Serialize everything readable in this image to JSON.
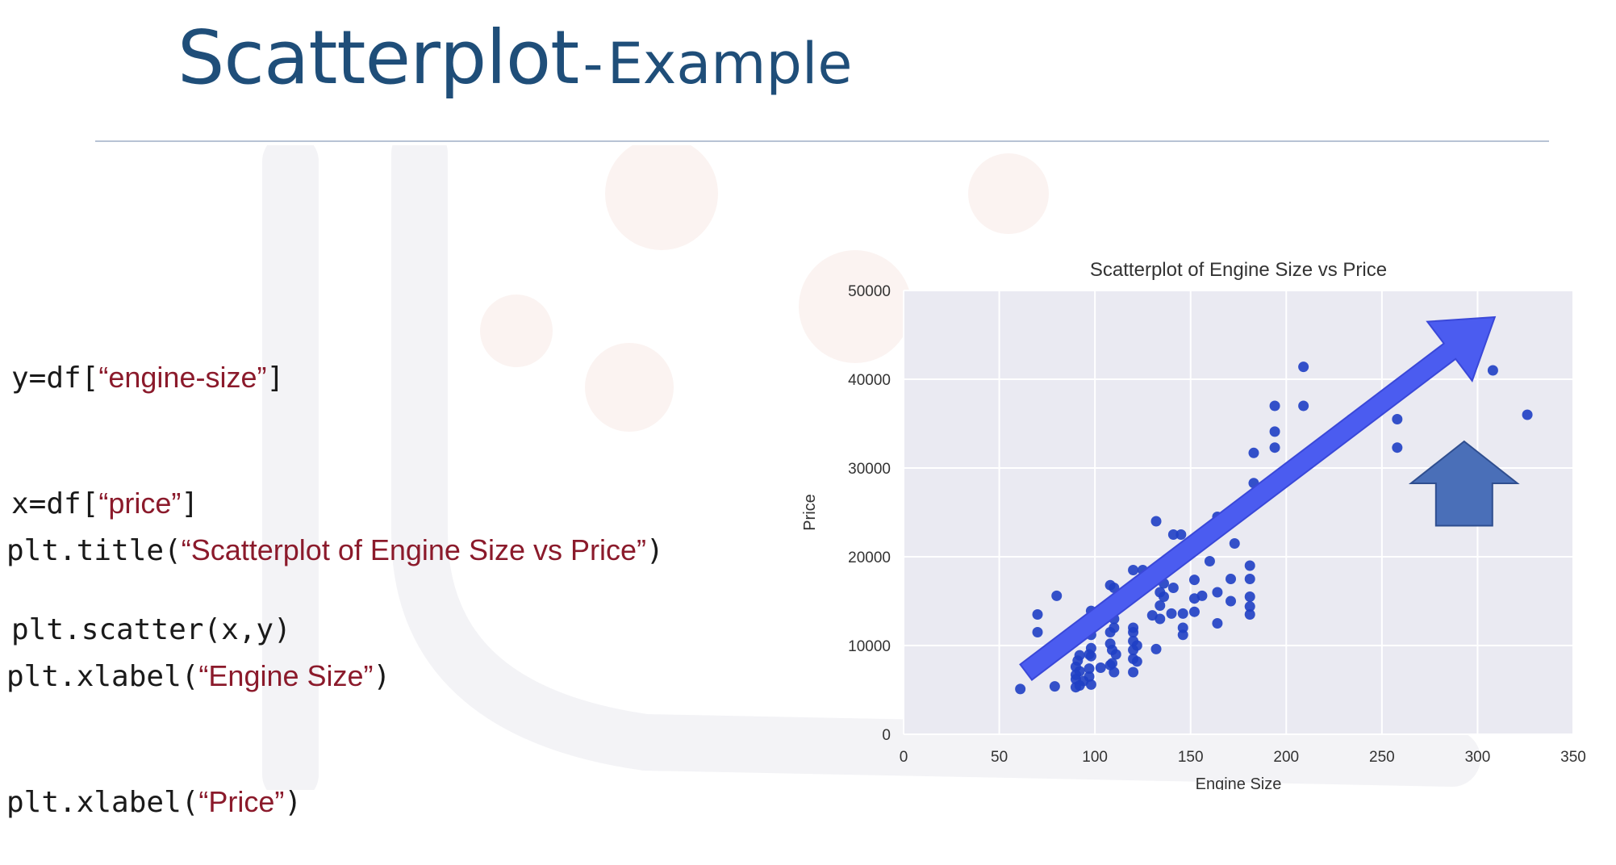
{
  "slide": {
    "title_main": "Scatterplot",
    "title_sep": "-",
    "title_sub": "Example"
  },
  "code_block_1": [
    {
      "pre": "y=df[",
      "str": "“engine-size”",
      "post": "]"
    },
    {
      "pre": "x=df[",
      "str": "“price”",
      "post": "]"
    },
    {
      "pre": "plt.scatter(x,y)",
      "str": "",
      "post": ""
    }
  ],
  "code_block_2": [
    {
      "pre": "plt.title(",
      "str": "“Scatterplot of Engine Size vs Price”",
      "post": ")"
    },
    {
      "pre": "plt.xlabel(",
      "str": "“Engine Size”",
      "post": ")"
    },
    {
      "pre": "plt.xlabel(",
      "str": "“Price”",
      "post": ")"
    }
  ],
  "colors": {
    "title": "#1f4e79",
    "code_string": "#8b1a2b",
    "plot_bg": "#eaeaf2",
    "point": "#1f3fc4",
    "trend_arrow": "#4b5cf0",
    "up_arrow": "#4a6fb8"
  },
  "annotations": {
    "trend_arrow": {
      "from": [
        64,
        7000
      ],
      "to": [
        309,
        47000
      ]
    },
    "up_arrow": {
      "x": 293,
      "y_base": 23500,
      "y_tip": 33000
    }
  },
  "chart_data": {
    "type": "scatter",
    "title": "Scatterplot of Engine Size vs Price",
    "xlabel": "Engine Size",
    "ylabel": "Price",
    "xlim": [
      0,
      350
    ],
    "ylim": [
      0,
      50000
    ],
    "xticks": [
      0,
      50,
      100,
      150,
      200,
      250,
      300,
      350
    ],
    "yticks": [
      0,
      10000,
      20000,
      30000,
      40000,
      50000
    ],
    "grid": true,
    "points": [
      [
        61,
        5100
      ],
      [
        70,
        13500
      ],
      [
        70,
        11500
      ],
      [
        79,
        5400
      ],
      [
        80,
        15600
      ],
      [
        90,
        5300
      ],
      [
        90,
        6200
      ],
      [
        90,
        6700
      ],
      [
        90,
        7600
      ],
      [
        91,
        8300
      ],
      [
        92,
        5500
      ],
      [
        92,
        7100
      ],
      [
        92,
        8900
      ],
      [
        94,
        6000
      ],
      [
        97,
        6500
      ],
      [
        97,
        7400
      ],
      [
        97,
        9000
      ],
      [
        98,
        5600
      ],
      [
        98,
        8800
      ],
      [
        98,
        9700
      ],
      [
        98,
        11200
      ],
      [
        98,
        13900
      ],
      [
        103,
        7500
      ],
      [
        108,
        7800
      ],
      [
        108,
        10200
      ],
      [
        108,
        11500
      ],
      [
        108,
        16800
      ],
      [
        109,
        8000
      ],
      [
        109,
        9500
      ],
      [
        110,
        7000
      ],
      [
        110,
        12000
      ],
      [
        110,
        13000
      ],
      [
        110,
        16500
      ],
      [
        111,
        9000
      ],
      [
        114,
        15000
      ],
      [
        120,
        7000
      ],
      [
        120,
        8500
      ],
      [
        120,
        9500
      ],
      [
        120,
        10500
      ],
      [
        120,
        11500
      ],
      [
        120,
        12000
      ],
      [
        120,
        16500
      ],
      [
        120,
        18500
      ],
      [
        122,
        10000
      ],
      [
        122,
        8200
      ],
      [
        130,
        13400
      ],
      [
        131,
        18000
      ],
      [
        132,
        9600
      ],
      [
        134,
        13000
      ],
      [
        134,
        14500
      ],
      [
        134,
        16000
      ],
      [
        136,
        15500
      ],
      [
        136,
        17000
      ],
      [
        140,
        13600
      ],
      [
        141,
        16500
      ],
      [
        141,
        22500
      ],
      [
        145,
        22500
      ],
      [
        146,
        11200
      ],
      [
        146,
        12000
      ],
      [
        146,
        13600
      ],
      [
        152,
        13800
      ],
      [
        152,
        15300
      ],
      [
        152,
        17400
      ],
      [
        156,
        15600
      ],
      [
        156,
        21500
      ],
      [
        164,
        12500
      ],
      [
        164,
        24500
      ],
      [
        164,
        16000
      ],
      [
        171,
        15000
      ],
      [
        171,
        17500
      ],
      [
        173,
        21500
      ],
      [
        181,
        13500
      ],
      [
        181,
        14400
      ],
      [
        181,
        15500
      ],
      [
        181,
        17500
      ],
      [
        181,
        19000
      ],
      [
        183,
        28300
      ],
      [
        183,
        31700
      ],
      [
        194,
        32300
      ],
      [
        194,
        34100
      ],
      [
        194,
        37000
      ],
      [
        203,
        30400
      ],
      [
        209,
        37000
      ],
      [
        209,
        41400
      ],
      [
        234,
        35500
      ],
      [
        258,
        32300
      ],
      [
        258,
        35500
      ],
      [
        308,
        41000
      ],
      [
        326,
        36000
      ],
      [
        132,
        24000
      ],
      [
        125,
        18500
      ],
      [
        160,
        19500
      ]
    ]
  }
}
